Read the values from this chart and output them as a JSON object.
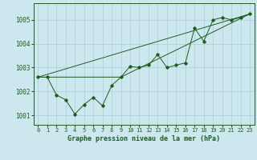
{
  "title": "Graphe pression niveau de la mer (hPa)",
  "background_color": "#cce8ee",
  "grid_color": "#aacdd6",
  "line_color": "#1e5c1e",
  "xlim": [
    -0.5,
    23.5
  ],
  "ylim": [
    1000.6,
    1005.7
  ],
  "yticks": [
    1001,
    1002,
    1003,
    1004,
    1005
  ],
  "xticks": [
    0,
    1,
    2,
    3,
    4,
    5,
    6,
    7,
    8,
    9,
    10,
    11,
    12,
    13,
    14,
    15,
    16,
    17,
    18,
    19,
    20,
    21,
    22,
    23
  ],
  "line1_x": [
    0,
    1,
    2,
    3,
    4,
    5,
    6,
    7,
    8,
    9,
    10,
    11,
    12,
    13,
    14,
    15,
    16,
    17,
    18,
    19,
    20,
    21,
    22,
    23
  ],
  "line1_y": [
    1002.6,
    1002.6,
    1001.85,
    1001.65,
    1001.05,
    1001.45,
    1001.75,
    1001.4,
    1002.25,
    1002.6,
    1003.05,
    1003.0,
    1003.1,
    1003.55,
    1003.0,
    1003.1,
    1003.2,
    1004.65,
    1004.1,
    1005.0,
    1005.1,
    1005.0,
    1005.1,
    1005.25
  ],
  "line2_x": [
    0,
    9,
    23
  ],
  "line2_y": [
    1002.6,
    1002.6,
    1005.25
  ],
  "line3_x": [
    0,
    23
  ],
  "line3_y": [
    1002.6,
    1005.25
  ],
  "ylabel_fontsize": 5.5,
  "xlabel_fontsize": 5.0,
  "title_fontsize": 6.0
}
